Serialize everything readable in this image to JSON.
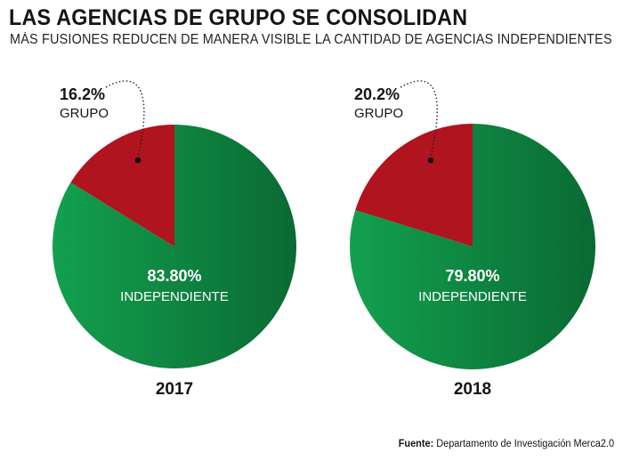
{
  "title": "LAS AGENCIAS DE GRUPO SE CONSOLIDAN",
  "subtitle": "MÁS FUSIONES REDUCEN DE MANERA VISIBLE LA CANTIDAD DE AGENCIAS INDEPENDIENTES",
  "source": {
    "label": "Fuente:",
    "text": "Departamento de Investigación Merca2.0"
  },
  "colors": {
    "independiente_light": "#13a04f",
    "independiente_dark": "#0a6a33",
    "grupo": "#b0141e",
    "label_text": "#ffffff"
  },
  "chart_data": [
    {
      "type": "pie",
      "year_label": "2017",
      "slices": [
        {
          "name": "GRUPO",
          "value": 16.2,
          "value_label": "16.2%"
        },
        {
          "name": "INDEPENDIENTE",
          "value": 83.8,
          "value_label": "83.80%"
        }
      ]
    },
    {
      "type": "pie",
      "year_label": "2018",
      "slices": [
        {
          "name": "GRUPO",
          "value": 20.2,
          "value_label": "20.2%"
        },
        {
          "name": "INDEPENDIENTE",
          "value": 79.8,
          "value_label": "79.80%"
        }
      ]
    }
  ]
}
